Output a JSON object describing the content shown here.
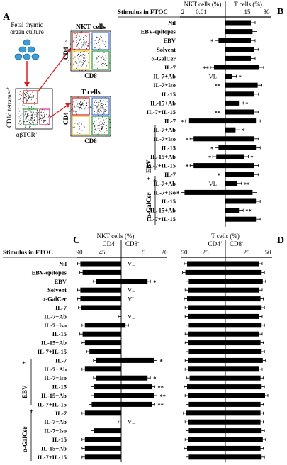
{
  "panels": {
    "A": {
      "letter": "A",
      "culture_label": [
        "Fetal thymic",
        "organ culture"
      ],
      "nkt_label": "NKT cells",
      "t_label": "T cells",
      "cd4": "CD4",
      "cd8": "CD8",
      "ylabel": "CD1d tetramer",
      "ylabel_sup": "+",
      "xlabel": "αβTCR",
      "xlabel_sup": "+"
    },
    "B": {
      "letter": "B",
      "header": "Stimulus in FTOC",
      "left_title": "NKT cells (%)",
      "right_title": "T cells (%)",
      "left_ticks": [
        "2",
        "0.01"
      ],
      "right_ticks": [
        "15",
        "30"
      ]
    },
    "C": {
      "letter": "C",
      "header": "Stimulus in FTOC",
      "title": "NKT cells (%)",
      "sub_left": "CD4",
      "sub_left_sup": "+",
      "sub_right": "CD8",
      "sub_right_sup": "-",
      "ticks": [
        "90",
        "45",
        "5",
        "20"
      ]
    },
    "D": {
      "letter": "D",
      "title": "T cells (%)",
      "sub_left": "CD4",
      "sub_left_sup": "+",
      "sub_right": "CD8",
      "sub_right_sup": "-",
      "ticks": [
        "50",
        "25",
        "25",
        "50"
      ]
    }
  },
  "groups": {
    "ebv": "EBV",
    "gal": "α-GalCer",
    "plus": "+"
  },
  "chart_data": {
    "type": "bar",
    "categories": [
      "Nil",
      "EBV-epitopes",
      "EBV",
      "Solvent",
      "α-GalCer",
      "IL-7",
      "IL-7+Ab",
      "IL-7+Iso",
      "IL-15",
      "IL-15+Ab",
      "IL-7+IL-15",
      "IL-7",
      "IL-7+Ab",
      "IL-7+Iso",
      "IL-15",
      "IL-15+Ab",
      "IL-7+IL-15",
      "IL-7",
      "IL-7+Ab",
      "IL-7+Iso",
      "IL-15",
      "IL-15+Ab",
      "IL-7+IL-15"
    ],
    "panel_B": {
      "nkt": [
        0,
        0,
        3,
        0,
        0,
        5,
        0,
        0,
        0,
        0,
        0,
        16,
        0,
        14,
        3,
        4,
        14,
        0,
        0,
        18,
        0,
        0,
        0
      ],
      "t": [
        15,
        16,
        15,
        17,
        15,
        20,
        4,
        19,
        17,
        8,
        17,
        18,
        6,
        17,
        18,
        11,
        17,
        17,
        7,
        16,
        18,
        8,
        18
      ],
      "vl": [
        null,
        null,
        null,
        null,
        null,
        null,
        "VL",
        null,
        null,
        null,
        null,
        null,
        null,
        null,
        null,
        null,
        null,
        null,
        "VL",
        null,
        null,
        null,
        null
      ],
      "stars_nkt": [
        "",
        "",
        "*",
        "",
        "",
        "**",
        "",
        "**",
        "",
        "",
        "**",
        "*",
        "",
        "*",
        "*",
        "*",
        "*",
        "*",
        "",
        "*",
        "",
        "",
        ""
      ],
      "stars_t": [
        "",
        "",
        "",
        "",
        "",
        "",
        "*",
        "",
        "",
        "*",
        "",
        "",
        "*",
        "",
        "",
        "*",
        "",
        "",
        "**",
        "",
        "",
        "**",
        ""
      ]
    },
    "panel_C": {
      "cd4": [
        90,
        85,
        55,
        90,
        90,
        88,
        0,
        80,
        85,
        80,
        70,
        55,
        80,
        55,
        60,
        60,
        65,
        80,
        0,
        60,
        80,
        80,
        80
      ],
      "cd8": [
        0,
        0,
        12,
        0,
        0,
        0,
        0,
        2,
        0,
        0,
        0,
        15,
        0,
        12,
        14,
        15,
        14,
        0,
        0,
        0,
        0,
        0,
        0
      ],
      "vl": [
        "VL",
        null,
        null,
        "VL",
        "VL",
        null,
        "VL",
        null,
        null,
        null,
        null,
        null,
        null,
        null,
        null,
        null,
        null,
        null,
        "VL",
        null,
        null,
        null,
        null
      ],
      "stars": [
        "",
        "",
        "*",
        "",
        "",
        "",
        "",
        "",
        "",
        "",
        "",
        "*",
        "",
        "*",
        "**",
        "**",
        "**",
        "",
        "",
        "",
        "",
        "",
        ""
      ]
    },
    "panel_D": {
      "cd4": [
        45,
        47,
        43,
        44,
        45,
        44,
        44,
        43,
        44,
        44,
        43,
        44,
        44,
        42,
        45,
        44,
        43,
        46,
        44,
        43,
        44,
        45,
        43
      ],
      "cd8": [
        30,
        32,
        33,
        30,
        31,
        32,
        30,
        32,
        30,
        31,
        32,
        33,
        30,
        31,
        32,
        35,
        31,
        31,
        31,
        32,
        33,
        31,
        32
      ]
    }
  }
}
